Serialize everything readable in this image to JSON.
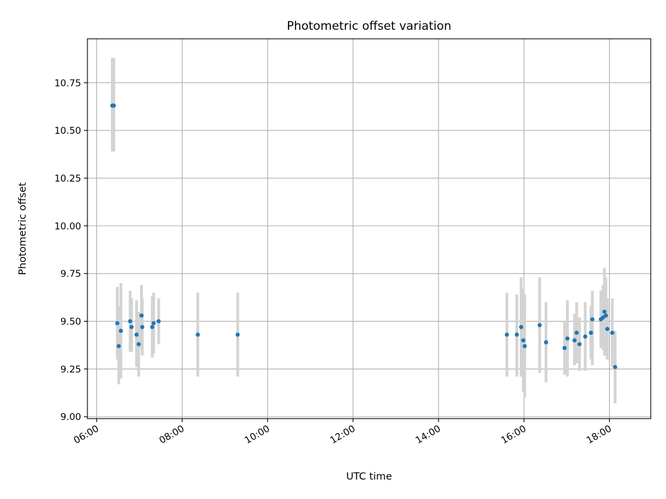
{
  "chart_data": {
    "type": "scatter",
    "title": "Photometric offset variation",
    "xlabel": "UTC time",
    "ylabel": "Photometric offset",
    "xlim": [
      "05:47",
      "18:58"
    ],
    "ylim": [
      8.99,
      10.98
    ],
    "x_ticks": [
      "06:00",
      "08:00",
      "10:00",
      "12:00",
      "14:00",
      "16:00",
      "18:00"
    ],
    "y_ticks": [
      "9.00",
      "9.25",
      "9.50",
      "9.75",
      "10.00",
      "10.25",
      "10.50",
      "10.75"
    ],
    "grid": true,
    "errorbar_color": "#d3d3d3",
    "marker_color": "#1f77b4",
    "points": [
      {
        "x": "06:22",
        "y": 10.63,
        "lo": 10.39,
        "hi": 10.88
      },
      {
        "x": "06:24",
        "y": 10.63,
        "lo": 10.39,
        "hi": 10.88
      },
      {
        "x": "06:29",
        "y": 9.49,
        "lo": 9.3,
        "hi": 9.68
      },
      {
        "x": "06:31",
        "y": 9.37,
        "lo": 9.17,
        "hi": 9.58
      },
      {
        "x": "06:34",
        "y": 9.45,
        "lo": 9.2,
        "hi": 9.7
      },
      {
        "x": "06:47",
        "y": 9.5,
        "lo": 9.34,
        "hi": 9.66
      },
      {
        "x": "06:49",
        "y": 9.47,
        "lo": 9.34,
        "hi": 9.62
      },
      {
        "x": "06:56",
        "y": 9.43,
        "lo": 9.26,
        "hi": 9.61
      },
      {
        "x": "06:59",
        "y": 9.38,
        "lo": 9.21,
        "hi": 9.55
      },
      {
        "x": "07:03",
        "y": 9.53,
        "lo": 9.36,
        "hi": 9.69
      },
      {
        "x": "07:04",
        "y": 9.47,
        "lo": 9.32,
        "hi": 9.62
      },
      {
        "x": "07:18",
        "y": 9.47,
        "lo": 9.31,
        "hi": 9.63
      },
      {
        "x": "07:20",
        "y": 9.49,
        "lo": 9.33,
        "hi": 9.65
      },
      {
        "x": "07:27",
        "y": 9.5,
        "lo": 9.38,
        "hi": 9.62
      },
      {
        "x": "08:22",
        "y": 9.43,
        "lo": 9.21,
        "hi": 9.65
      },
      {
        "x": "09:18",
        "y": 9.43,
        "lo": 9.21,
        "hi": 9.65
      },
      {
        "x": "15:36",
        "y": 9.43,
        "lo": 9.21,
        "hi": 9.65
      },
      {
        "x": "15:50",
        "y": 9.43,
        "lo": 9.21,
        "hi": 9.64
      },
      {
        "x": "15:56",
        "y": 9.47,
        "lo": 9.21,
        "hi": 9.73
      },
      {
        "x": "15:59",
        "y": 9.4,
        "lo": 9.13,
        "hi": 9.67
      },
      {
        "x": "16:01",
        "y": 9.37,
        "lo": 9.1,
        "hi": 9.64
      },
      {
        "x": "16:22",
        "y": 9.48,
        "lo": 9.23,
        "hi": 9.73
      },
      {
        "x": "16:31",
        "y": 9.39,
        "lo": 9.18,
        "hi": 9.6
      },
      {
        "x": "16:57",
        "y": 9.36,
        "lo": 9.22,
        "hi": 9.5
      },
      {
        "x": "17:01",
        "y": 9.41,
        "lo": 9.21,
        "hi": 9.61
      },
      {
        "x": "17:11",
        "y": 9.4,
        "lo": 9.27,
        "hi": 9.54
      },
      {
        "x": "17:14",
        "y": 9.44,
        "lo": 9.28,
        "hi": 9.6
      },
      {
        "x": "17:18",
        "y": 9.38,
        "lo": 9.24,
        "hi": 9.52
      },
      {
        "x": "17:26",
        "y": 9.42,
        "lo": 9.24,
        "hi": 9.6
      },
      {
        "x": "17:34",
        "y": 9.44,
        "lo": 9.3,
        "hi": 9.58
      },
      {
        "x": "17:36",
        "y": 9.51,
        "lo": 9.27,
        "hi": 9.66
      },
      {
        "x": "17:48",
        "y": 9.51,
        "lo": 9.36,
        "hi": 9.66
      },
      {
        "x": "17:51",
        "y": 9.52,
        "lo": 9.35,
        "hi": 9.69
      },
      {
        "x": "17:53",
        "y": 9.55,
        "lo": 9.32,
        "hi": 9.78
      },
      {
        "x": "17:55",
        "y": 9.53,
        "lo": 9.33,
        "hi": 9.73
      },
      {
        "x": "17:57",
        "y": 9.46,
        "lo": 9.3,
        "hi": 9.62
      },
      {
        "x": "18:04",
        "y": 9.44,
        "lo": 9.26,
        "hi": 9.62
      },
      {
        "x": "18:08",
        "y": 9.26,
        "lo": 9.07,
        "hi": 9.45
      }
    ]
  }
}
